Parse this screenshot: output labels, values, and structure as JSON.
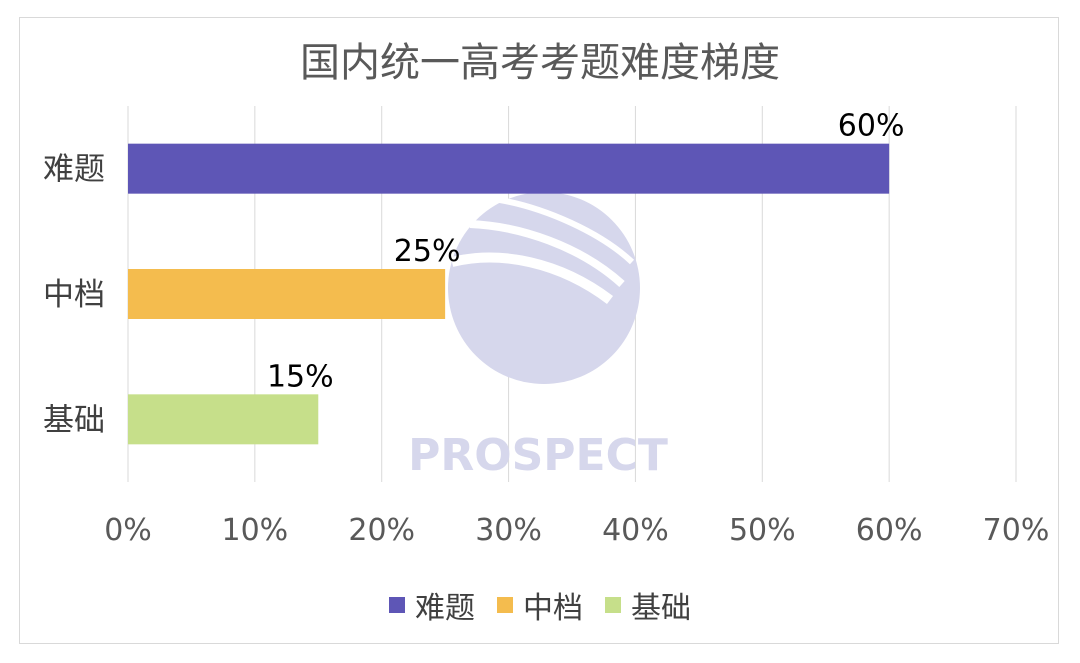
{
  "chart_data": {
    "type": "bar",
    "orientation": "horizontal",
    "title": "国内统一高考考题难度梯度",
    "categories": [
      "难题",
      "中档",
      "基础"
    ],
    "values": [
      60,
      25,
      15
    ],
    "data_labels": [
      "60%",
      "25%",
      "15%"
    ],
    "colors": [
      "#5e56b6",
      "#f4bc4e",
      "#c6df8a"
    ],
    "xlim": [
      0,
      70
    ],
    "xticks": [
      "0%",
      "10%",
      "20%",
      "30%",
      "40%",
      "50%",
      "60%",
      "70%"
    ],
    "grid": true,
    "legend": {
      "position": "bottom",
      "items": [
        {
          "label": "难题",
          "color": "#5e56b6"
        },
        {
          "label": "中档",
          "color": "#f4bc4e"
        },
        {
          "label": "基础",
          "color": "#c6df8a"
        }
      ]
    }
  },
  "watermark": {
    "text": "PROSPECT",
    "color": "#d6d7ec"
  }
}
